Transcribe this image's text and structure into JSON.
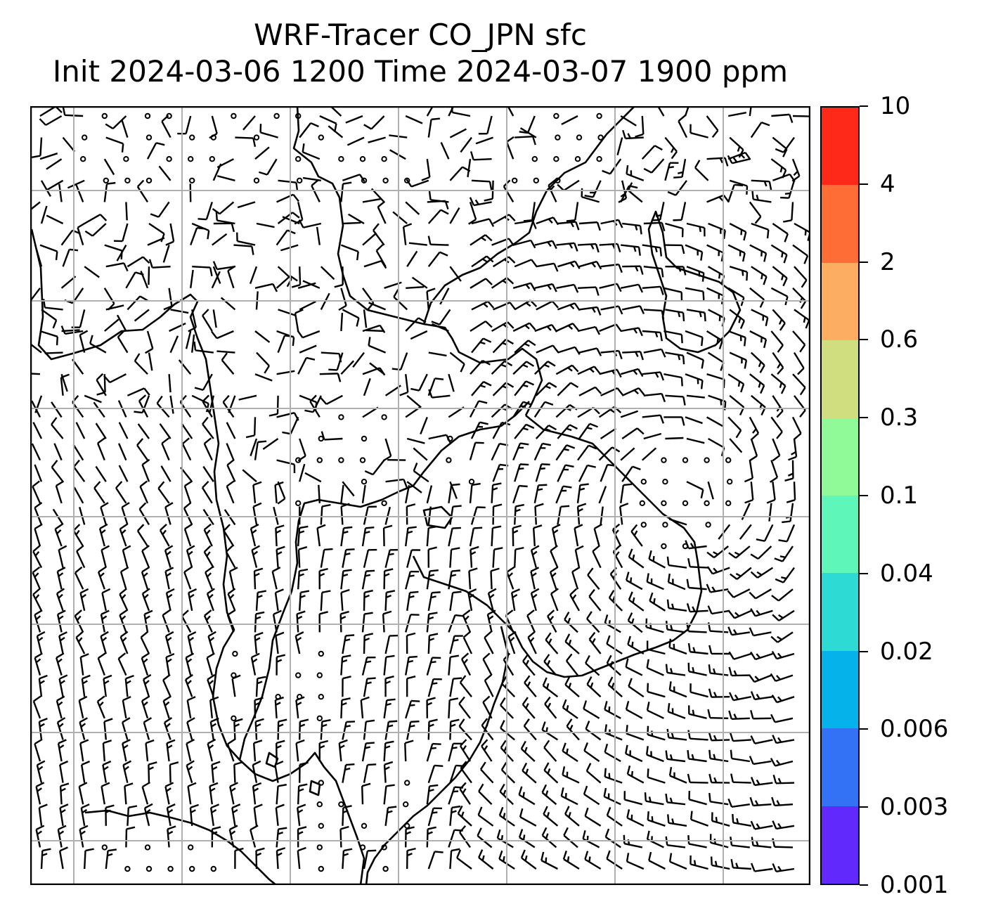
{
  "title": {
    "line1": "WRF-Tracer CO_JPN sfc",
    "line2": "Init 2024-03-06 1200 Time 2024-03-07 1900 ppm"
  },
  "colorbar": {
    "levels": [
      "0.001",
      "0.003",
      "0.006",
      "0.02",
      "0.04",
      "0.1",
      "0.3",
      "0.6",
      "2",
      "4",
      "10"
    ],
    "colors": [
      "#6129fb",
      "#3372f4",
      "#05b2ea",
      "#2ddad4",
      "#5ff6b9",
      "#91fa98",
      "#d1de80",
      "#fdad61",
      "#ff6d37",
      "#fe2918"
    ]
  },
  "map": {
    "gridline_color": "#b0b0b0",
    "coastline_color": "#000000",
    "barb_color": "#000000"
  }
}
